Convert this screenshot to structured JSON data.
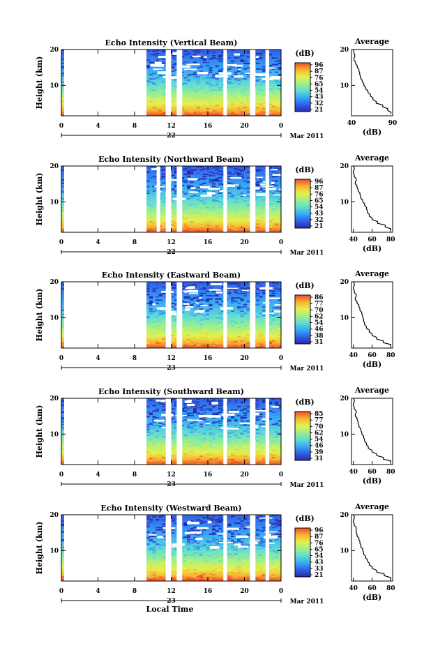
{
  "figure": {
    "xlabel": "Local Time",
    "colorbar_unit": "(dB)",
    "colormap": [
      "#2a2ab0",
      "#2f5fe6",
      "#38a9f5",
      "#62dcd2",
      "#9ef08a",
      "#e6f04b",
      "#f7b333",
      "#ef4b2a"
    ],
    "date_label": "Mar 2011",
    "profile_title": "Average",
    "profile_xlabel": "(dB)"
  },
  "chart_data": [
    {
      "type": "heatmap",
      "title": "Echo Intensity (Vertical Beam)",
      "ylabel": "Height (km)",
      "xlim": [
        0,
        24
      ],
      "ylim": [
        1.5,
        20
      ],
      "x_ticks": [
        "0",
        "4",
        "8",
        "12",
        "16",
        "20",
        "0"
      ],
      "y_ticks": [
        "20",
        "10"
      ],
      "day_label": "22",
      "colorbar_ticks": [
        "96",
        "87",
        "76",
        "65",
        "54",
        "43",
        "32",
        "21"
      ],
      "data_gaps_hours": [
        [
          0.3,
          9.3
        ],
        [
          11.4,
          12.0
        ],
        [
          12.6,
          13.2
        ],
        [
          17.7,
          18.1
        ],
        [
          20.6,
          21.2
        ],
        [
          22.3,
          22.7
        ]
      ],
      "profile": {
        "xlim": [
          40,
          90
        ],
        "x_ticks": [
          "40",
          "90"
        ],
        "y_ticks": [
          "20",
          "10"
        ],
        "heights": [
          2,
          3,
          4,
          5,
          6,
          7,
          8,
          9,
          10,
          11,
          12,
          13,
          14,
          15,
          16,
          17,
          18,
          19,
          20
        ],
        "values": [
          88,
          84,
          78,
          70,
          66,
          63,
          60,
          57,
          55,
          53,
          51,
          50,
          49,
          47,
          45,
          43,
          44,
          43,
          42
        ]
      }
    },
    {
      "type": "heatmap",
      "title": "Echo Intensity (Northward Beam)",
      "ylabel": "Height (km)",
      "xlim": [
        0,
        24
      ],
      "ylim": [
        1.5,
        20
      ],
      "x_ticks": [
        "0",
        "4",
        "8",
        "12",
        "16",
        "20",
        "0"
      ],
      "y_ticks": [
        "20",
        "10"
      ],
      "day_label": "22",
      "colorbar_ticks": [
        "96",
        "87",
        "76",
        "65",
        "54",
        "43",
        "32",
        "21"
      ],
      "data_gaps_hours": [
        [
          0.3,
          9.3
        ],
        [
          10.4,
          10.8
        ],
        [
          11.4,
          12.0
        ],
        [
          12.6,
          13.2
        ],
        [
          17.7,
          18.1
        ],
        [
          20.6,
          21.2
        ],
        [
          22.3,
          22.7
        ]
      ],
      "profile": {
        "xlim": [
          38,
          82
        ],
        "x_ticks": [
          "40",
          "60",
          "80"
        ],
        "y_ticks": [
          "20",
          "10"
        ],
        "heights": [
          2,
          3,
          4,
          5,
          6,
          7,
          8,
          9,
          10,
          11,
          12,
          13,
          14,
          15,
          16,
          17,
          18,
          19,
          20
        ],
        "values": [
          80,
          74,
          66,
          60,
          57,
          55,
          54,
          52,
          50,
          48,
          47,
          45,
          44,
          42,
          43,
          41,
          40,
          41,
          40
        ]
      }
    },
    {
      "type": "heatmap",
      "title": "Echo Intensity (Eastward Beam)",
      "ylabel": "Height (km)",
      "xlim": [
        0,
        24
      ],
      "ylim": [
        1.5,
        20
      ],
      "x_ticks": [
        "0",
        "4",
        "8",
        "12",
        "16",
        "20",
        "0"
      ],
      "y_ticks": [
        "20",
        "10"
      ],
      "day_label": "23",
      "colorbar_ticks": [
        "86",
        "77",
        "70",
        "62",
        "54",
        "46",
        "38",
        "31"
      ],
      "data_gaps_hours": [
        [
          0.3,
          9.3
        ],
        [
          11.4,
          12.0
        ],
        [
          12.6,
          13.2
        ],
        [
          17.7,
          18.1
        ],
        [
          20.6,
          21.2
        ],
        [
          22.3,
          22.7
        ]
      ],
      "profile": {
        "xlim": [
          38,
          82
        ],
        "x_ticks": [
          "40",
          "60",
          "80"
        ],
        "y_ticks": [
          "20",
          "10"
        ],
        "heights": [
          2,
          3,
          4,
          5,
          6,
          7,
          8,
          9,
          10,
          11,
          12,
          13,
          14,
          15,
          16,
          17,
          18,
          19,
          20
        ],
        "values": [
          80,
          72,
          65,
          60,
          57,
          54,
          52,
          51,
          50,
          49,
          47,
          46,
          44,
          42,
          43,
          41,
          40,
          41,
          40
        ]
      }
    },
    {
      "type": "heatmap",
      "title": "Echo Intensity (Southward Beam)",
      "ylabel": "Height (km)",
      "xlim": [
        0,
        24
      ],
      "ylim": [
        1.5,
        20
      ],
      "x_ticks": [
        "0",
        "4",
        "8",
        "12",
        "16",
        "20",
        "0"
      ],
      "y_ticks": [
        "20",
        "10"
      ],
      "day_label": "23",
      "colorbar_ticks": [
        "85",
        "77",
        "70",
        "62",
        "54",
        "46",
        "39",
        "31"
      ],
      "data_gaps_hours": [
        [
          0.3,
          9.3
        ],
        [
          11.4,
          12.0
        ],
        [
          12.6,
          13.2
        ],
        [
          17.7,
          18.1
        ],
        [
          20.6,
          21.2
        ],
        [
          22.3,
          22.7
        ]
      ],
      "profile": {
        "xlim": [
          38,
          82
        ],
        "x_ticks": [
          "40",
          "60",
          "80"
        ],
        "y_ticks": [
          "20",
          "10"
        ],
        "heights": [
          2,
          3,
          4,
          5,
          6,
          7,
          8,
          9,
          10,
          11,
          12,
          13,
          14,
          15,
          16,
          17,
          18,
          19,
          20
        ],
        "values": [
          80,
          72,
          65,
          60,
          56,
          54,
          52,
          51,
          49,
          48,
          46,
          45,
          44,
          42,
          43,
          41,
          40,
          41,
          40
        ]
      }
    },
    {
      "type": "heatmap",
      "title": "Echo Intensity (Westward Beam)",
      "ylabel": "Height (km)",
      "xlim": [
        0,
        24
      ],
      "ylim": [
        1.5,
        20
      ],
      "x_ticks": [
        "0",
        "4",
        "8",
        "12",
        "16",
        "20",
        "0"
      ],
      "y_ticks": [
        "20",
        "10"
      ],
      "day_label": "23",
      "colorbar_ticks": [
        "96",
        "87",
        "76",
        "65",
        "54",
        "43",
        "33",
        "21"
      ],
      "data_gaps_hours": [
        [
          0.3,
          9.3
        ],
        [
          11.4,
          12.0
        ],
        [
          12.6,
          13.2
        ],
        [
          17.7,
          18.1
        ],
        [
          20.6,
          21.2
        ],
        [
          22.3,
          22.7
        ]
      ],
      "profile": {
        "xlim": [
          38,
          82
        ],
        "x_ticks": [
          "40",
          "60",
          "80"
        ],
        "y_ticks": [
          "20",
          "10"
        ],
        "heights": [
          2,
          3,
          4,
          5,
          6,
          7,
          8,
          9,
          10,
          11,
          12,
          13,
          14,
          15,
          16,
          17,
          18,
          19,
          20
        ],
        "values": [
          80,
          73,
          65,
          60,
          57,
          55,
          53,
          51,
          50,
          48,
          47,
          46,
          44,
          43,
          43,
          41,
          40,
          41,
          40
        ]
      }
    }
  ]
}
